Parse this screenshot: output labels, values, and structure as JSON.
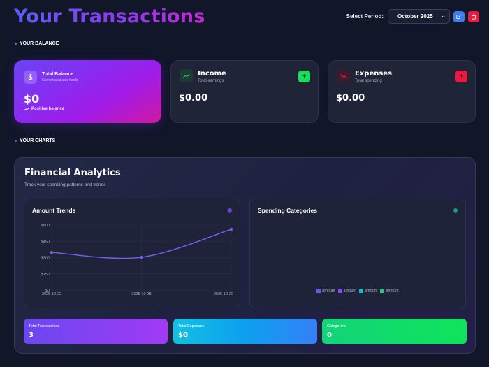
{
  "header": {
    "title": "Your Transactions",
    "period_label": "Select Period:",
    "period_value": "October 2025",
    "edit_icon": "edit-icon",
    "delete_icon": "trash-icon"
  },
  "sections": {
    "balance_label": "YOUR BALANCE",
    "charts_label": "YOUR CHARTS"
  },
  "balance_card": {
    "title": "Total Balance",
    "subtitle": "Current available funds",
    "value": "$0",
    "trend_text": "Positive balance",
    "icon": "dollar-icon"
  },
  "income_card": {
    "title": "Income",
    "subtitle": "Total earnings",
    "value": "$0.00",
    "add_label": "+",
    "icon": "trending-up-icon",
    "color": "#16e05a"
  },
  "expenses_card": {
    "title": "Expenses",
    "subtitle": "Total spending",
    "value": "$0.00",
    "add_label": "+",
    "icon": "trending-down-icon",
    "color": "#ea1940"
  },
  "analytics": {
    "title": "Financial Analytics",
    "subtitle": "Track your spending patterns and trends"
  },
  "charts": {
    "trend_title": "Amount Trends",
    "categories_title": "Spending Categories",
    "legend": [
      {
        "label": "amount",
        "color": "#5b5ef0"
      },
      {
        "label": "amount",
        "color": "#8b4cf2"
      },
      {
        "label": "amount",
        "color": "#16b8d6"
      },
      {
        "label": "amount",
        "color": "#1ecc7a"
      }
    ]
  },
  "chart_data": {
    "type": "line",
    "title": "Amount Trends",
    "x": [
      "2025-10-22",
      "2025-10-28",
      "2025-10-29"
    ],
    "series": [
      {
        "name": "amount",
        "values": [
          348,
          303,
          561
        ],
        "color": "#7c5cf0"
      }
    ],
    "yticks": [
      "$0",
      "$150",
      "$300",
      "$450",
      "$600"
    ],
    "ylim": [
      0,
      600
    ],
    "grid": true,
    "xlabel": "",
    "ylabel": ""
  },
  "stats": [
    {
      "label": "Total Transactions",
      "value": "3"
    },
    {
      "label": "Total Expenses",
      "value": "$0"
    },
    {
      "label": "Categories",
      "value": "0"
    }
  ]
}
